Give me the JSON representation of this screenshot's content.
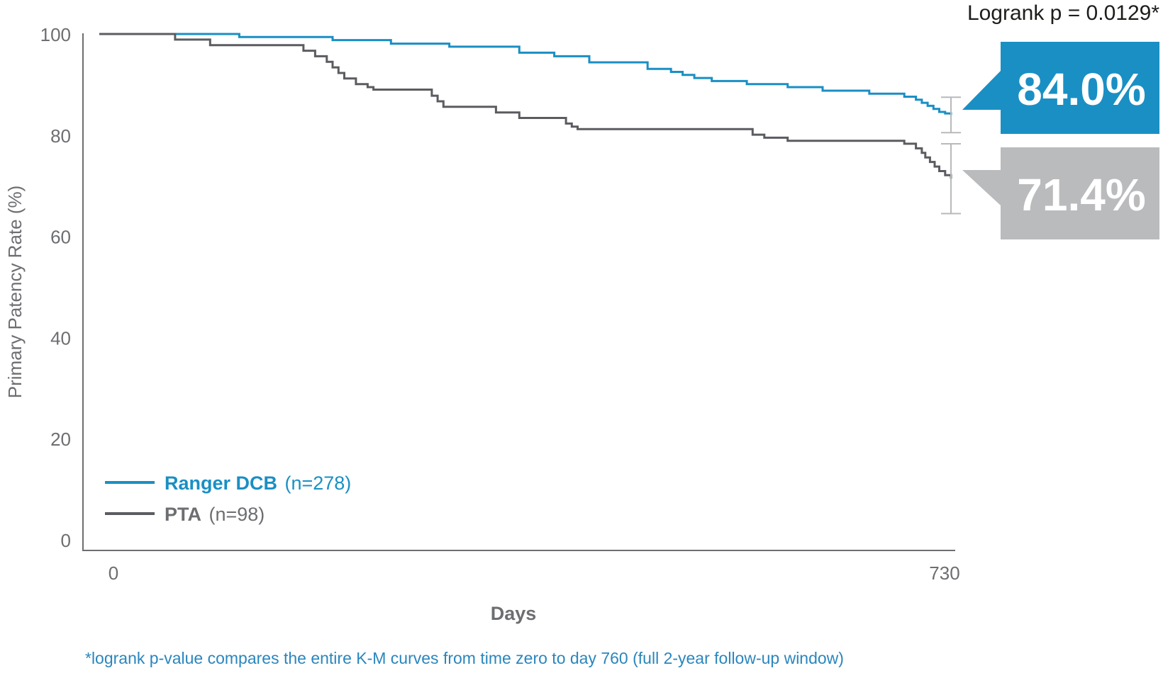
{
  "chart_data": {
    "type": "line",
    "subtype": "kaplan-meier step",
    "ylabel": "Primary Patency Rate (%)",
    "xlabel": "Days",
    "ylim": [
      0,
      100
    ],
    "xlim": [
      0,
      730
    ],
    "y_ticks": [
      "0",
      "20",
      "40",
      "60",
      "80",
      "100"
    ],
    "x_ticks": [
      "0",
      "730"
    ],
    "annotation": "Logrank p = 0.0129*",
    "footnote": "*logrank p-value compares the entire K-M curves from time zero to day 760 (full 2-year follow-up window)",
    "grid": false,
    "legend_position": "bottom-left",
    "series": [
      {
        "name": "Ranger DCB",
        "n_label": "(n=278)",
        "color": "#1a8fc4",
        "final_label": "84.0%",
        "final_value": 84.0,
        "ci": [
          80.5,
          87.5
        ],
        "x": [
          0,
          120,
          200,
          250,
          300,
          360,
          390,
          420,
          470,
          490,
          500,
          510,
          525,
          555,
          590,
          620,
          660,
          690,
          700,
          705,
          710,
          715,
          720,
          725,
          730
        ],
        "y": [
          100,
          99.4,
          98.8,
          98.1,
          97.5,
          96.3,
          95.6,
          94.4,
          93.1,
          92.5,
          91.9,
          91.3,
          90.7,
          90.1,
          89.5,
          88.8,
          88.2,
          87.6,
          87.0,
          86.4,
          85.8,
          85.2,
          84.6,
          84.3,
          84.0
        ]
      },
      {
        "name": "PTA",
        "n_label": "(n=98)",
        "color": "#5b5c60",
        "final_label": "71.4%",
        "final_value": 71.4,
        "ci": [
          64.5,
          78.3
        ],
        "x": [
          0,
          65,
          95,
          175,
          185,
          195,
          200,
          205,
          210,
          220,
          230,
          235,
          285,
          290,
          295,
          340,
          360,
          400,
          405,
          410,
          560,
          570,
          590,
          690,
          700,
          705,
          708,
          712,
          716,
          720,
          725,
          730
        ],
        "y": [
          100,
          98.9,
          97.8,
          96.7,
          95.6,
          94.5,
          93.4,
          92.3,
          91.2,
          90.1,
          89.5,
          89.0,
          87.8,
          86.7,
          85.6,
          84.5,
          83.4,
          82.3,
          81.7,
          81.2,
          80.1,
          79.5,
          78.9,
          78.3,
          77.4,
          76.5,
          75.6,
          74.7,
          73.8,
          72.9,
          72.1,
          71.4
        ]
      }
    ]
  }
}
